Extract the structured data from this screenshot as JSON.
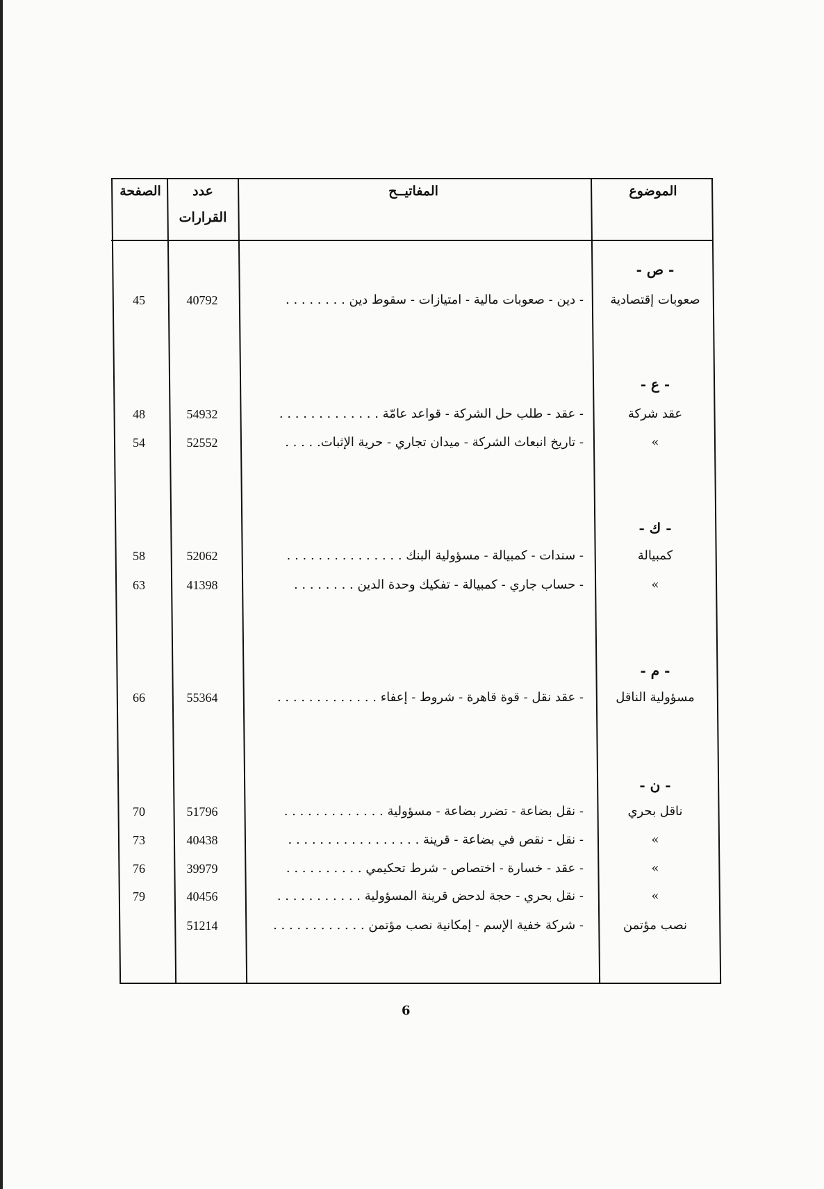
{
  "header": {
    "subject": "الموضوع",
    "keywords": "المفاتيــح",
    "decisions_line1": "عدد",
    "decisions_line2": "القرارات",
    "page": "الصفحة"
  },
  "sections": [
    {
      "letter": "- ص -",
      "rows": [
        {
          "subject": "صعوبات إقتصادية",
          "keywords": "- دين - صعوبات مالية - امتيازات - سقوط دين . . . . . . . .",
          "decision": "40792",
          "page": "45"
        }
      ]
    },
    {
      "letter": "- ع -",
      "rows": [
        {
          "subject": "عقد شركة",
          "keywords": "- عقد - طلب حل الشركة - قواعد عامّة . . . . . . . . . . . . .",
          "decision": "54932",
          "page": "48"
        },
        {
          "subject": "»",
          "keywords": "- تاريخ انبعاث الشركة - ميدان تجاري - حرية الإثبات. . . . .",
          "decision": "52552",
          "page": "54"
        }
      ]
    },
    {
      "letter": "- ك -",
      "rows": [
        {
          "subject": "كمبيالة",
          "keywords": "- سندات - كمبيالة - مسؤولية البنك . . . . . . . . . . . . . . .",
          "decision": "52062",
          "page": "58"
        },
        {
          "subject": "»",
          "keywords": "- حساب جاري - كمبيالة - تفكيك وحدة الدين . . . . . . . .",
          "decision": "41398",
          "page": "63"
        }
      ]
    },
    {
      "letter": "- م -",
      "rows": [
        {
          "subject": "مسؤولية الناقل",
          "keywords": "- عقد نقل - قوة قاهرة - شروط - إعفاء . . . . . . . . . . . . .",
          "decision": "55364",
          "page": "66"
        }
      ]
    },
    {
      "letter": "- ن -",
      "rows": [
        {
          "subject": "ناقل بحري",
          "keywords": "- نقل بضاعة - تضرر بضاعة - مسؤولية . . . . . . . . . . . . .",
          "decision": "51796",
          "page": "70"
        },
        {
          "subject": "»",
          "keywords": "- نقل - نقص في بضاعة - قرينة . . . . . . . . . . . . . . . . .",
          "decision": "40438",
          "page": "73"
        },
        {
          "subject": "»",
          "keywords": "- عقد - خسارة - اختصاص - شرط تحكيمي . . . . . . . . . .",
          "decision": "39979",
          "page": "76"
        },
        {
          "subject": "»",
          "keywords": "- نقل بحري - حجة لدحض قرينة المسؤولية . . . . . . . . . . .",
          "decision": "40456",
          "page": "79"
        },
        {
          "subject": "نصب مؤتمن",
          "keywords": "- شركة خفية الإسم - إمكانية نصب مؤتمن . . . . . . . . . . . .",
          "decision": "51214",
          "page": ""
        }
      ]
    }
  ],
  "footer": {
    "page_number": "6"
  }
}
